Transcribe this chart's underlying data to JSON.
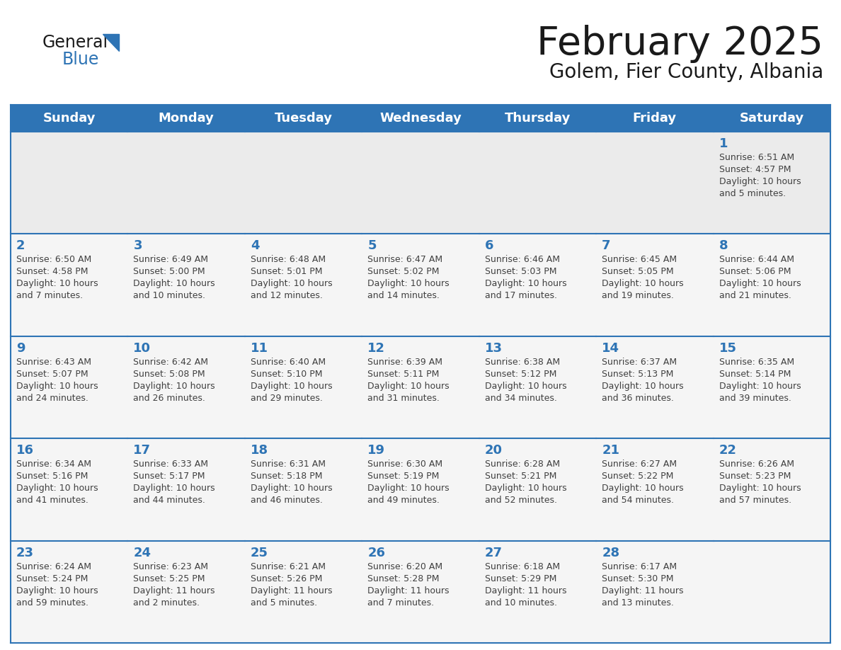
{
  "title": "February 2025",
  "subtitle": "Golem, Fier County, Albania",
  "header_bg_color": "#2E74B5",
  "header_text_color": "#FFFFFF",
  "border_color": "#2E74B5",
  "day_number_color": "#2E74B5",
  "cell_text_color": "#404040",
  "title_color": "#1A1A1A",
  "first_row_bg": "#EBEBEB",
  "other_row_bg": "#F5F5F5",
  "days_of_week": [
    "Sunday",
    "Monday",
    "Tuesday",
    "Wednesday",
    "Thursday",
    "Friday",
    "Saturday"
  ],
  "calendar_data": [
    [
      null,
      null,
      null,
      null,
      null,
      null,
      {
        "day": 1,
        "sunrise": "6:51 AM",
        "sunset": "4:57 PM",
        "daylight": "10 hours and 5 minutes."
      }
    ],
    [
      {
        "day": 2,
        "sunrise": "6:50 AM",
        "sunset": "4:58 PM",
        "daylight": "10 hours and 7 minutes."
      },
      {
        "day": 3,
        "sunrise": "6:49 AM",
        "sunset": "5:00 PM",
        "daylight": "10 hours and 10 minutes."
      },
      {
        "day": 4,
        "sunrise": "6:48 AM",
        "sunset": "5:01 PM",
        "daylight": "10 hours and 12 minutes."
      },
      {
        "day": 5,
        "sunrise": "6:47 AM",
        "sunset": "5:02 PM",
        "daylight": "10 hours and 14 minutes."
      },
      {
        "day": 6,
        "sunrise": "6:46 AM",
        "sunset": "5:03 PM",
        "daylight": "10 hours and 17 minutes."
      },
      {
        "day": 7,
        "sunrise": "6:45 AM",
        "sunset": "5:05 PM",
        "daylight": "10 hours and 19 minutes."
      },
      {
        "day": 8,
        "sunrise": "6:44 AM",
        "sunset": "5:06 PM",
        "daylight": "10 hours and 21 minutes."
      }
    ],
    [
      {
        "day": 9,
        "sunrise": "6:43 AM",
        "sunset": "5:07 PM",
        "daylight": "10 hours and 24 minutes."
      },
      {
        "day": 10,
        "sunrise": "6:42 AM",
        "sunset": "5:08 PM",
        "daylight": "10 hours and 26 minutes."
      },
      {
        "day": 11,
        "sunrise": "6:40 AM",
        "sunset": "5:10 PM",
        "daylight": "10 hours and 29 minutes."
      },
      {
        "day": 12,
        "sunrise": "6:39 AM",
        "sunset": "5:11 PM",
        "daylight": "10 hours and 31 minutes."
      },
      {
        "day": 13,
        "sunrise": "6:38 AM",
        "sunset": "5:12 PM",
        "daylight": "10 hours and 34 minutes."
      },
      {
        "day": 14,
        "sunrise": "6:37 AM",
        "sunset": "5:13 PM",
        "daylight": "10 hours and 36 minutes."
      },
      {
        "day": 15,
        "sunrise": "6:35 AM",
        "sunset": "5:14 PM",
        "daylight": "10 hours and 39 minutes."
      }
    ],
    [
      {
        "day": 16,
        "sunrise": "6:34 AM",
        "sunset": "5:16 PM",
        "daylight": "10 hours and 41 minutes."
      },
      {
        "day": 17,
        "sunrise": "6:33 AM",
        "sunset": "5:17 PM",
        "daylight": "10 hours and 44 minutes."
      },
      {
        "day": 18,
        "sunrise": "6:31 AM",
        "sunset": "5:18 PM",
        "daylight": "10 hours and 46 minutes."
      },
      {
        "day": 19,
        "sunrise": "6:30 AM",
        "sunset": "5:19 PM",
        "daylight": "10 hours and 49 minutes."
      },
      {
        "day": 20,
        "sunrise": "6:28 AM",
        "sunset": "5:21 PM",
        "daylight": "10 hours and 52 minutes."
      },
      {
        "day": 21,
        "sunrise": "6:27 AM",
        "sunset": "5:22 PM",
        "daylight": "10 hours and 54 minutes."
      },
      {
        "day": 22,
        "sunrise": "6:26 AM",
        "sunset": "5:23 PM",
        "daylight": "10 hours and 57 minutes."
      }
    ],
    [
      {
        "day": 23,
        "sunrise": "6:24 AM",
        "sunset": "5:24 PM",
        "daylight": "10 hours and 59 minutes."
      },
      {
        "day": 24,
        "sunrise": "6:23 AM",
        "sunset": "5:25 PM",
        "daylight": "11 hours and 2 minutes."
      },
      {
        "day": 25,
        "sunrise": "6:21 AM",
        "sunset": "5:26 PM",
        "daylight": "11 hours and 5 minutes."
      },
      {
        "day": 26,
        "sunrise": "6:20 AM",
        "sunset": "5:28 PM",
        "daylight": "11 hours and 7 minutes."
      },
      {
        "day": 27,
        "sunrise": "6:18 AM",
        "sunset": "5:29 PM",
        "daylight": "11 hours and 10 minutes."
      },
      {
        "day": 28,
        "sunrise": "6:17 AM",
        "sunset": "5:30 PM",
        "daylight": "11 hours and 13 minutes."
      },
      null
    ]
  ]
}
